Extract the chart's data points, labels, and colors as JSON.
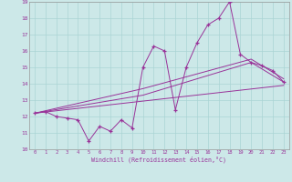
{
  "xlabel": "Windchill (Refroidissement éolien,°C)",
  "background_color": "#cce8e8",
  "line_color": "#993399",
  "xlim": [
    -0.5,
    23.5
  ],
  "ylim": [
    10,
    19
  ],
  "yticks": [
    10,
    11,
    12,
    13,
    14,
    15,
    16,
    17,
    18,
    19
  ],
  "xticks": [
    0,
    1,
    2,
    3,
    4,
    5,
    6,
    7,
    8,
    9,
    10,
    11,
    12,
    13,
    14,
    15,
    16,
    17,
    18,
    19,
    20,
    21,
    22,
    23
  ],
  "main_x": [
    0,
    1,
    2,
    3,
    4,
    5,
    6,
    7,
    8,
    9,
    10,
    11,
    12,
    13,
    14,
    15,
    16,
    17,
    18,
    19,
    20,
    21,
    22,
    23
  ],
  "main_y": [
    12.2,
    12.3,
    12.0,
    11.9,
    11.8,
    10.5,
    11.4,
    11.1,
    11.8,
    11.3,
    15.0,
    16.3,
    16.0,
    12.4,
    15.0,
    16.5,
    17.6,
    18.0,
    19.0,
    15.8,
    15.3,
    15.1,
    14.8,
    14.1
  ],
  "trend1_x": [
    0,
    23
  ],
  "trend1_y": [
    12.2,
    13.9
  ],
  "trend2_x": [
    0,
    10,
    20,
    23
  ],
  "trend2_y": [
    12.2,
    13.3,
    15.3,
    14.1
  ],
  "trend3_x": [
    0,
    10,
    20,
    23
  ],
  "trend3_y": [
    12.2,
    13.7,
    15.5,
    14.3
  ]
}
